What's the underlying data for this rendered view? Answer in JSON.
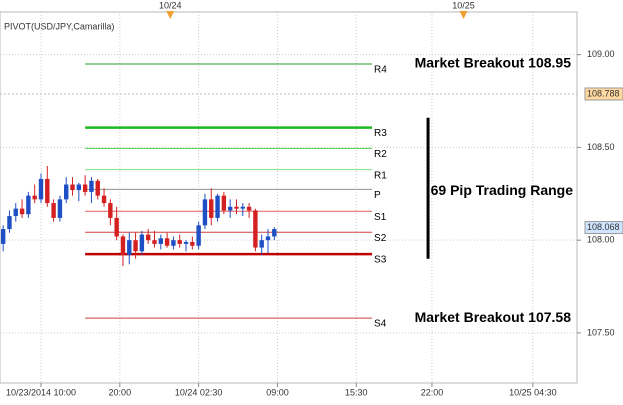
{
  "chart_data": {
    "type": "candlestick",
    "title": "PIVOT(USD/JPY,Camarilla)",
    "up_color": "#1f4fc4",
    "down_color": "#d42020",
    "xlim": [
      -0.5,
      91
    ],
    "ylim": [
      107.23,
      109.23
    ],
    "yticks": [
      {
        "value": 109,
        "label": "109.00"
      },
      {
        "value": 108.5,
        "label": "108.50"
      },
      {
        "value": 108,
        "label": "108.00"
      },
      {
        "value": 107.5,
        "label": "107.50"
      }
    ],
    "xticks": [
      {
        "value": 6,
        "label": "10/23/2014 10:00"
      },
      {
        "value": 18.5,
        "label": "20:00"
      },
      {
        "value": 31,
        "label": "10/24 02:30"
      },
      {
        "value": 43.5,
        "label": "09:00"
      },
      {
        "value": 56,
        "label": "15:30"
      },
      {
        "value": 68,
        "label": "22:00"
      },
      {
        "value": 84,
        "label": "10/25 04:30"
      }
    ],
    "top_markers": [
      {
        "value": 26.5,
        "label": "10/24"
      },
      {
        "value": 73,
        "label": "10/25"
      }
    ],
    "grid": true,
    "x": [
      0,
      1,
      2,
      3,
      4,
      5,
      6,
      7,
      8,
      9,
      10,
      11,
      12,
      13,
      14,
      15,
      16,
      17,
      18,
      19,
      20,
      21,
      22,
      23,
      24,
      25,
      26,
      27,
      28,
      29,
      30,
      31,
      32,
      33,
      34,
      35,
      36,
      37,
      38,
      39,
      40,
      41,
      42,
      43
    ],
    "open": [
      107.98,
      108.06,
      108.13,
      108.17,
      108.14,
      108.24,
      108.22,
      108.33,
      108.2,
      108.12,
      108.22,
      108.3,
      108.27,
      108.3,
      108.26,
      108.32,
      108.24,
      108.2,
      108.12,
      108.02,
      107.92,
      108.0,
      107.94,
      108.03,
      108.0,
      107.98,
      108.01,
      107.97,
      108.0,
      107.98,
      107.99,
      107.97,
      108.08,
      108.22,
      108.12,
      108.24,
      108.16,
      108.18,
      108.17,
      108.18,
      108.16,
      107.96,
      108.0,
      108.02
    ],
    "high": [
      108.08,
      108.16,
      108.2,
      108.22,
      108.26,
      108.3,
      108.36,
      108.4,
      108.22,
      108.24,
      108.34,
      108.34,
      108.31,
      108.35,
      108.34,
      108.33,
      108.28,
      108.22,
      108.18,
      108.03,
      108.04,
      108.04,
      108.05,
      108.06,
      108.05,
      108.03,
      108.04,
      108.02,
      108.03,
      108.0,
      108.02,
      108.1,
      108.25,
      108.28,
      108.25,
      108.26,
      108.22,
      108.22,
      108.2,
      108.2,
      108.17,
      108.03,
      108.06,
      108.07
    ],
    "low": [
      107.94,
      108.04,
      108.1,
      108.12,
      108.12,
      108.2,
      108.2,
      108.18,
      108.1,
      108.1,
      108.2,
      108.24,
      108.21,
      108.24,
      108.2,
      108.22,
      108.18,
      108.08,
      108.0,
      107.86,
      107.87,
      107.9,
      107.92,
      107.98,
      107.96,
      107.95,
      107.96,
      107.95,
      107.96,
      107.94,
      107.95,
      107.95,
      108.06,
      108.08,
      108.1,
      108.14,
      108.12,
      108.14,
      108.13,
      108.12,
      107.94,
      107.92,
      107.93,
      108.0
    ],
    "close": [
      108.06,
      108.13,
      108.17,
      108.14,
      108.24,
      108.22,
      108.33,
      108.2,
      108.12,
      108.22,
      108.3,
      108.27,
      108.3,
      108.26,
      108.32,
      108.24,
      108.2,
      108.12,
      108.02,
      107.92,
      108.0,
      107.94,
      108.03,
      108.0,
      107.98,
      108.01,
      107.97,
      108.0,
      107.98,
      107.99,
      107.97,
      108.08,
      108.22,
      108.12,
      108.24,
      108.16,
      108.18,
      108.17,
      108.18,
      108.16,
      107.96,
      108.0,
      108.02,
      108.06
    ],
    "pivots": [
      {
        "name": "R4",
        "value": 108.95,
        "color": "#2e9a2e",
        "width": 1
      },
      {
        "name": "R3",
        "value": 108.607,
        "color": "#1fb81f",
        "width": 2.5
      },
      {
        "name": "R2",
        "value": 108.495,
        "color": "#4ed34e",
        "width": 1
      },
      {
        "name": "R1",
        "value": 108.38,
        "color": "#7ee07e",
        "width": 1
      },
      {
        "name": "P",
        "value": 108.274,
        "color": "#909090",
        "width": 1
      },
      {
        "name": "S1",
        "value": 108.156,
        "color": "#e06060",
        "width": 1
      },
      {
        "name": "S2",
        "value": 108.043,
        "color": "#d04040",
        "width": 1
      },
      {
        "name": "S3",
        "value": 107.925,
        "color": "#c00000",
        "width": 2.5
      },
      {
        "name": "S4",
        "value": 107.58,
        "color": "#d04040",
        "width": 1
      }
    ],
    "pivot_span": [
      13,
      58.5
    ],
    "price_markers": [
      {
        "value": 108.788,
        "label": "108.788",
        "color": "#ffd9a0"
      },
      {
        "value": 108.068,
        "label": "108.068",
        "color": "#cfe4ff"
      }
    ],
    "annotations": [
      {
        "text": "Market Breakout   108.95",
        "value": 108.95
      },
      {
        "text": "Market Breakout   107.58",
        "value": 107.58
      },
      {
        "text": "69 Pip Trading Range",
        "value": 108.274
      }
    ],
    "range_bar": [
      107.9,
      108.66
    ]
  }
}
